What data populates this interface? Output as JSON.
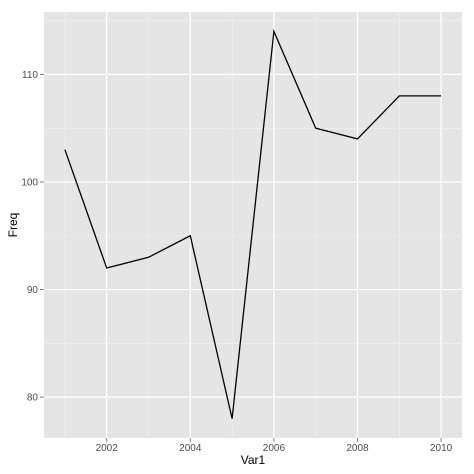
{
  "chart_data": {
    "type": "line",
    "title": "",
    "xlabel": "Var1",
    "ylabel": "Freq",
    "x": [
      2001,
      2002,
      2003,
      2004,
      2005,
      2006,
      2007,
      2008,
      2009,
      2010
    ],
    "series": [
      {
        "values": [
          103,
          92,
          93,
          95,
          78,
          114,
          105,
          104,
          108,
          108
        ]
      }
    ],
    "xlim": [
      2000.5,
      2010.5
    ],
    "ylim": [
      76.2,
      115.8
    ],
    "xticks": [
      2002,
      2004,
      2006,
      2008,
      2010
    ],
    "xtick_labels": [
      "2002",
      "2004",
      "2006",
      "2008",
      "2010"
    ],
    "yticks": [
      80,
      90,
      100,
      110
    ],
    "ytick_labels": [
      "80",
      "90",
      "100",
      "110"
    ],
    "grid": true,
    "colors": {
      "panel": "#e5e5e5",
      "grid_major": "#ffffff",
      "grid_minor": "#f2f2f2",
      "line": "#000000"
    }
  }
}
